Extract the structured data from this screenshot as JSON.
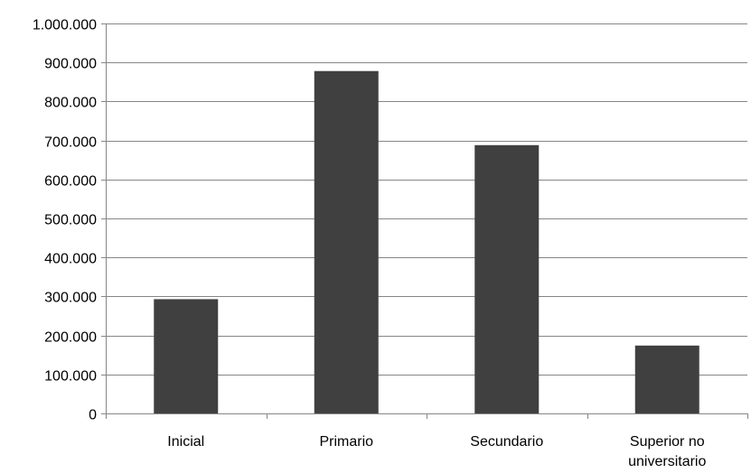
{
  "chart_data": {
    "type": "bar",
    "title": "",
    "xlabel": "",
    "ylabel": "",
    "categories": [
      "Inicial",
      "Primario",
      "Secundario",
      "Superior no universitario"
    ],
    "category_labels": [
      [
        "Inicial"
      ],
      [
        "Primario"
      ],
      [
        "Secundario"
      ],
      [
        "Superior no",
        "universitario"
      ]
    ],
    "values": [
      293000,
      878000,
      688000,
      174000
    ],
    "ylim": [
      0,
      1000000
    ],
    "yticks": [
      0,
      100000,
      200000,
      300000,
      400000,
      500000,
      600000,
      700000,
      800000,
      900000,
      1000000
    ],
    "ytick_labels": [
      "0",
      "100.000",
      "200.000",
      "300.000",
      "400.000",
      "500.000",
      "600.000",
      "700.000",
      "800.000",
      "900.000",
      "1.000.000"
    ],
    "grid": true,
    "legend": "none",
    "bar_color": "#404040",
    "grid_color": "#868686"
  }
}
